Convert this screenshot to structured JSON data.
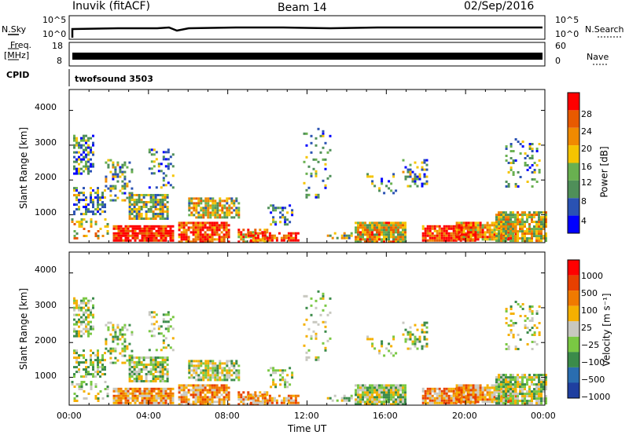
{
  "header": {
    "station": "Inuvik (fitACF)",
    "beam": "Beam 14",
    "date": "02/Sep/2016"
  },
  "top_panels": {
    "nsky": {
      "label": "N.Sky",
      "ticks": [
        "10^5",
        "10^0"
      ]
    },
    "nsearch": {
      "label": "N.Search",
      "ticks": [
        "10^5",
        "10^0"
      ]
    },
    "freq": {
      "label_line1": "Freq.",
      "label_line2": "[MHz]",
      "ticks": [
        "18",
        "8"
      ]
    },
    "nave": {
      "label": "Nave",
      "ticks": [
        "60",
        "0"
      ]
    },
    "cpid": {
      "label": "CPID",
      "value": "twofsound 3503"
    }
  },
  "colors": {
    "power_scale": [
      "#0000ff",
      "#2a52b3",
      "#4f8f59",
      "#69b050",
      "#f5c400",
      "#f08a00",
      "#e85a00",
      "#ff0000"
    ],
    "velocity_scale": [
      "#1f3fa0",
      "#2a6db0",
      "#3b8b4a",
      "#7ac843",
      "#c8c8c0",
      "#f5b000",
      "#f07a00",
      "#e84000",
      "#ff0000"
    ]
  },
  "chart_data": [
    {
      "type": "heatmap",
      "title": "",
      "xlabel": "",
      "ylabel": "Slant Range [km]",
      "xlim": [
        "00:00",
        "24:00"
      ],
      "ylim": [
        200,
        4600
      ],
      "y_ticks": [
        "1000",
        "2000",
        "3000",
        "4000"
      ],
      "colorbar": {
        "label": "Power [dB]",
        "ticks": [
          "4",
          "8",
          "12",
          "16",
          "20",
          "24",
          "28"
        ]
      }
    },
    {
      "type": "heatmap",
      "title": "",
      "xlabel": "Time UT",
      "ylabel": "Slant Range [km]",
      "xlim": [
        "00:00",
        "24:00"
      ],
      "ylim": [
        200,
        4600
      ],
      "x_ticks": [
        "00:00",
        "04:00",
        "08:00",
        "12:00",
        "16:00",
        "20:00",
        "00:00"
      ],
      "y_ticks": [
        "1000",
        "2000",
        "3000",
        "4000"
      ],
      "colorbar": {
        "label": "Velocity [m s⁻¹]",
        "ticks": [
          "1000",
          "500",
          "100",
          "25",
          "−25",
          "−100",
          "−500",
          "−1000"
        ]
      }
    }
  ]
}
